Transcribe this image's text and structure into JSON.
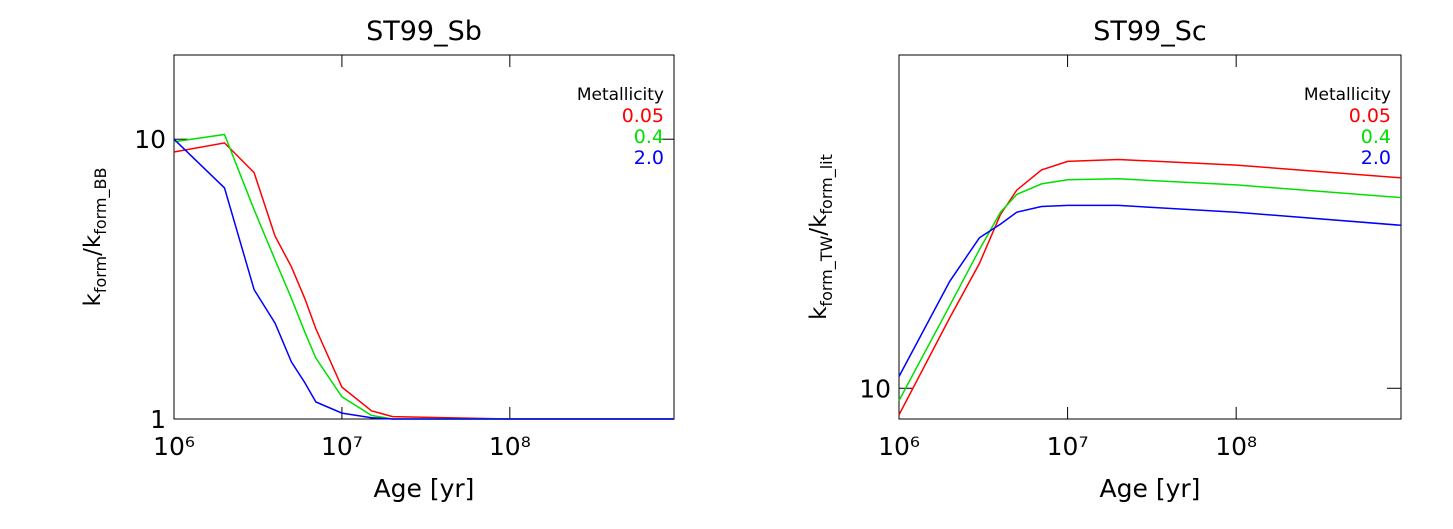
{
  "chart_data": [
    {
      "type": "line",
      "title": "ST99_Sb",
      "xlabel": "Age [yr]",
      "ylabel": [
        "k",
        "form",
        "/k",
        "form_BB"
      ],
      "log_x": true,
      "log_y": true,
      "xlim": [
        1000000,
        950000000
      ],
      "ylim": [
        1,
        20
      ],
      "xticks": [
        {
          "value": 1000000,
          "label": "10⁶"
        },
        {
          "value": 10000000,
          "label": "10⁷"
        },
        {
          "value": 100000000,
          "label": "10⁸"
        }
      ],
      "yticks": [
        1,
        10
      ],
      "legend_title": "Metallicity",
      "legend": "upper right",
      "x": [
        1000000,
        2000000,
        3000000,
        4000000,
        5000000,
        6000000,
        7000000,
        10000000,
        15000000,
        20000000,
        100000000,
        950000000
      ],
      "series": [
        {
          "name": "0.05",
          "color": "#ff0000",
          "values": [
            9.0,
            9.7,
            7.6,
            4.5,
            3.5,
            2.7,
            2.1,
            1.3,
            1.07,
            1.02,
            1.0,
            1.0
          ]
        },
        {
          "name": "0.4",
          "color": "#00e000",
          "values": [
            9.8,
            10.4,
            5.6,
            3.7,
            2.7,
            2.05,
            1.65,
            1.2,
            1.03,
            1.0,
            1.0,
            1.0
          ]
        },
        {
          "name": "2.0",
          "color": "#0000ff",
          "values": [
            10.0,
            6.7,
            2.9,
            2.2,
            1.6,
            1.35,
            1.15,
            1.05,
            1.01,
            1.0,
            1.0,
            1.0
          ]
        }
      ]
    },
    {
      "type": "line",
      "title": "ST99_Sc",
      "xlabel": "Age [yr]",
      "ylabel": [
        "k",
        "form_TW",
        "/k",
        "form_lit"
      ],
      "log_x": true,
      "log_y": true,
      "xlim": [
        1000000,
        950000000
      ],
      "ylim": [
        8.8,
        40
      ],
      "xticks": [
        {
          "value": 1000000,
          "label": "10⁶"
        },
        {
          "value": 10000000,
          "label": "10⁷"
        },
        {
          "value": 100000000,
          "label": "10⁸"
        }
      ],
      "yticks": [
        10
      ],
      "legend_title": "Metallicity",
      "legend": "upper right",
      "x": [
        1000000,
        2000000,
        3000000,
        4000000,
        5000000,
        7000000,
        10000000,
        20000000,
        100000000,
        950000000
      ],
      "series": [
        {
          "name": "0.05",
          "color": "#ff0000",
          "values": [
            8.95,
            13.4,
            16.8,
            20.6,
            22.8,
            24.8,
            25.7,
            25.9,
            25.3,
            24.0
          ]
        },
        {
          "name": "0.4",
          "color": "#00e000",
          "values": [
            9.5,
            14.1,
            17.8,
            20.8,
            22.4,
            23.4,
            23.8,
            23.9,
            23.3,
            22.1
          ]
        },
        {
          "name": "2.0",
          "color": "#0000ff",
          "values": [
            10.5,
            15.6,
            18.7,
            19.8,
            20.8,
            21.3,
            21.4,
            21.4,
            20.8,
            19.7
          ]
        }
      ]
    }
  ]
}
